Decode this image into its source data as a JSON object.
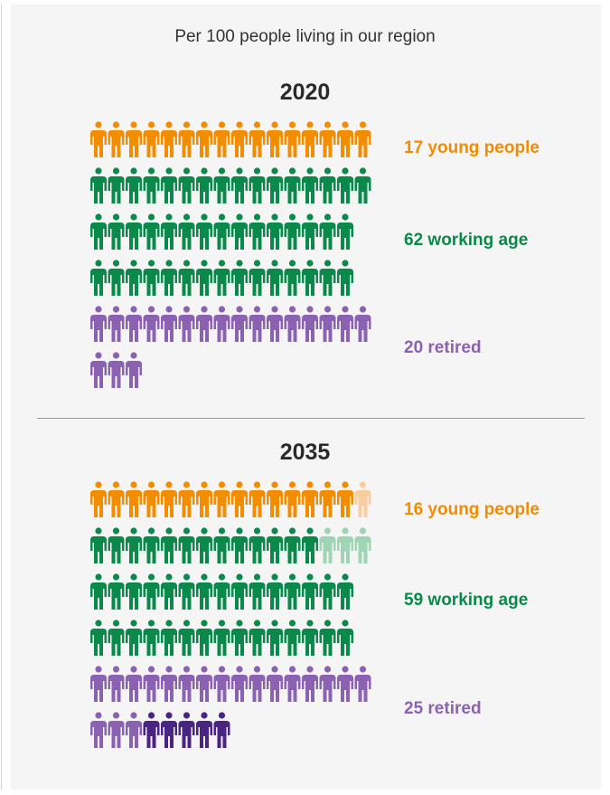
{
  "subtitle": "Per 100 people living in our region",
  "colors": {
    "young": "#f28c00",
    "young_light": "#fbcd9e",
    "working": "#0a8a4a",
    "working_light": "#9fd4b4",
    "retired": "#8b62b2",
    "retired_dark": "#4a2483"
  },
  "chart_data": [
    {
      "type": "pictogram",
      "title": "2020",
      "subtitle": "Per 100 people living in our region",
      "icons_per_row": 16,
      "series": [
        {
          "key": "young",
          "label": "17 young people",
          "value": 17
        },
        {
          "key": "working",
          "label": "62 working age",
          "value": 62
        },
        {
          "key": "retired",
          "label": "20 retired",
          "value": 20
        }
      ]
    },
    {
      "type": "pictogram",
      "title": "2035",
      "icons_per_row": 16,
      "series": [
        {
          "key": "young",
          "label": "16 young people",
          "value": 16,
          "faded_change": 1
        },
        {
          "key": "working",
          "label": "59 working age",
          "value": 59,
          "faded_change": 3
        },
        {
          "key": "retired",
          "label": "25 retired",
          "value": 25,
          "added_change": 5
        }
      ]
    }
  ]
}
